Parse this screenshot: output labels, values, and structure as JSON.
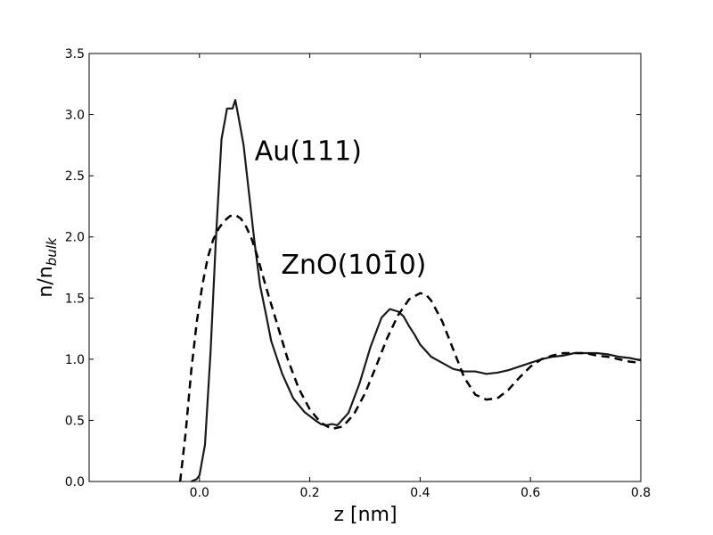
{
  "chart_data": {
    "type": "line",
    "xlabel": "z [nm]",
    "ylabel": {
      "main": "n/n",
      "sub": "bulk"
    },
    "xlim": [
      -0.2,
      0.8
    ],
    "ylim": [
      0.0,
      3.5
    ],
    "xticks": [
      0.0,
      0.2,
      0.4,
      0.6,
      0.8
    ],
    "xtick_labels": [
      "0.0",
      "0.2",
      "0.4",
      "0.6",
      "0.8"
    ],
    "yticks": [
      0.0,
      0.5,
      1.0,
      1.5,
      2.0,
      2.5,
      3.0,
      3.5
    ],
    "ytick_labels": [
      "0.0",
      "0.5",
      "1.0",
      "1.5",
      "2.0",
      "2.5",
      "3.0",
      "3.5"
    ],
    "grid": false,
    "annotations": [
      {
        "text": "Au(111)",
        "x": 0.1,
        "y": 2.63
      },
      {
        "text": "ZnO(10",
        "bar": "1",
        "tail": "0)",
        "x": 0.148,
        "y": 1.7
      }
    ],
    "series": [
      {
        "style": "solid",
        "color": "#1a1a1a",
        "x": [
          -0.015,
          -0.005,
          0.0,
          0.01,
          0.02,
          0.03,
          0.04,
          0.05,
          0.06,
          0.065,
          0.07,
          0.08,
          0.09,
          0.1,
          0.11,
          0.12,
          0.13,
          0.15,
          0.17,
          0.19,
          0.21,
          0.22,
          0.23,
          0.24,
          0.25,
          0.27,
          0.29,
          0.31,
          0.33,
          0.345,
          0.36,
          0.37,
          0.38,
          0.39,
          0.4,
          0.42,
          0.44,
          0.46,
          0.48,
          0.5,
          0.52,
          0.54,
          0.56,
          0.58,
          0.6,
          0.62,
          0.64,
          0.66,
          0.68,
          0.7,
          0.72,
          0.74,
          0.76,
          0.78,
          0.8
        ],
        "y": [
          0.0,
          0.02,
          0.05,
          0.3,
          1.05,
          2.0,
          2.8,
          3.05,
          3.05,
          3.12,
          3.0,
          2.75,
          2.35,
          1.95,
          1.6,
          1.38,
          1.15,
          0.88,
          0.68,
          0.57,
          0.5,
          0.47,
          0.46,
          0.47,
          0.46,
          0.56,
          0.8,
          1.1,
          1.34,
          1.41,
          1.39,
          1.35,
          1.27,
          1.2,
          1.12,
          1.02,
          0.97,
          0.92,
          0.9,
          0.9,
          0.88,
          0.89,
          0.91,
          0.94,
          0.97,
          1.0,
          1.02,
          1.03,
          1.05,
          1.05,
          1.05,
          1.04,
          1.02,
          1.01,
          0.99
        ]
      },
      {
        "style": "dashed",
        "color": "#000000",
        "x": [
          -0.035,
          -0.025,
          -0.015,
          -0.005,
          0.005,
          0.015,
          0.025,
          0.035,
          0.045,
          0.055,
          0.065,
          0.075,
          0.085,
          0.095,
          0.105,
          0.12,
          0.14,
          0.16,
          0.18,
          0.2,
          0.22,
          0.24,
          0.26,
          0.28,
          0.3,
          0.32,
          0.34,
          0.36,
          0.38,
          0.4,
          0.41,
          0.42,
          0.44,
          0.46,
          0.48,
          0.5,
          0.52,
          0.54,
          0.56,
          0.58,
          0.6,
          0.62,
          0.64,
          0.66,
          0.68,
          0.7,
          0.72,
          0.74,
          0.76,
          0.78,
          0.8
        ],
        "y": [
          0.0,
          0.4,
          0.9,
          1.3,
          1.6,
          1.83,
          1.98,
          2.07,
          2.13,
          2.17,
          2.18,
          2.15,
          2.08,
          1.98,
          1.84,
          1.6,
          1.3,
          1.0,
          0.76,
          0.59,
          0.48,
          0.43,
          0.45,
          0.55,
          0.72,
          0.94,
          1.17,
          1.36,
          1.49,
          1.54,
          1.53,
          1.48,
          1.31,
          1.08,
          0.85,
          0.71,
          0.67,
          0.68,
          0.75,
          0.85,
          0.94,
          1.0,
          1.03,
          1.05,
          1.05,
          1.05,
          1.03,
          1.02,
          1.0,
          0.98,
          0.97
        ]
      }
    ]
  }
}
